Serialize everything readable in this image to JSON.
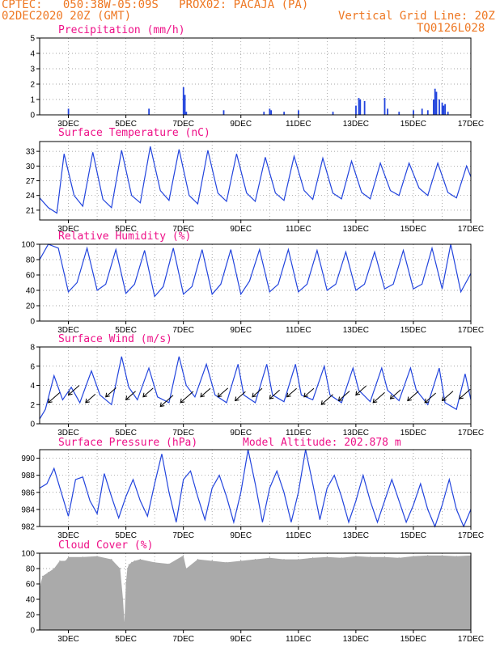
{
  "header": {
    "line1": "CPTEC:   050:38W-05:09S   PROX02: PACAJA (PA)",
    "line2": "02DEC2020 20Z (GMT)",
    "grid_note": "Vertical Grid Line: 20Z",
    "code": "TQ0126L028"
  },
  "colors": {
    "header": "#ee7722",
    "title": "#ee1188",
    "line": "#2244dd",
    "bar": "#2244dd",
    "cloud": "#aaaaaa",
    "wind": "#000000"
  },
  "chart_data": [
    {
      "id": "precip",
      "type": "bar",
      "title": "Precipitation (mm/h)",
      "ylim": [
        0,
        5
      ],
      "yticks": [
        0,
        1,
        2,
        3,
        4,
        5
      ],
      "xlim": [
        2.0,
        17.0
      ],
      "xticks": [
        "3DEC",
        "5DEC",
        "7DEC",
        "9DEC",
        "11DEC",
        "13DEC",
        "15DEC",
        "17DEC"
      ],
      "x": [
        3.0,
        5.8,
        7.0,
        7.05,
        7.1,
        8.4,
        9.8,
        10.0,
        10.05,
        10.5,
        11.0,
        12.2,
        13.0,
        13.1,
        13.15,
        13.3,
        14.0,
        14.1,
        14.5,
        15.0,
        15.3,
        15.5,
        15.7,
        15.75,
        15.8,
        15.9,
        16.0,
        16.05,
        16.1,
        16.2
      ],
      "values": [
        0.4,
        0.4,
        1.8,
        1.3,
        0.2,
        0.3,
        0.2,
        0.4,
        0.3,
        0.2,
        0.3,
        0.2,
        0.6,
        1.1,
        1.0,
        0.9,
        1.1,
        0.4,
        0.2,
        0.3,
        0.4,
        0.3,
        1.0,
        1.7,
        1.5,
        1.0,
        0.8,
        0.6,
        0.7,
        0.2
      ]
    },
    {
      "id": "temp",
      "type": "line",
      "title": "Surface Temperature (nC)",
      "ylim": [
        19,
        35
      ],
      "yticks": [
        21,
        24,
        27,
        30,
        33
      ],
      "xlim": [
        2.0,
        17.0
      ],
      "xticks": [
        "3DEC",
        "5DEC",
        "7DEC",
        "9DEC",
        "11DEC",
        "13DEC",
        "15DEC",
        "17DEC"
      ],
      "x": [
        2.0,
        2.3,
        2.6,
        2.85,
        3.2,
        3.5,
        3.85,
        4.2,
        4.5,
        4.85,
        5.2,
        5.5,
        5.85,
        6.2,
        6.5,
        6.85,
        7.2,
        7.5,
        7.85,
        8.2,
        8.5,
        8.85,
        9.2,
        9.5,
        9.85,
        10.2,
        10.5,
        10.85,
        11.2,
        11.5,
        11.85,
        12.2,
        12.5,
        12.85,
        13.2,
        13.5,
        13.85,
        14.2,
        14.5,
        14.85,
        15.2,
        15.5,
        15.85,
        16.2,
        16.5,
        16.85,
        17.0
      ],
      "values": [
        23.5,
        21.5,
        20.4,
        32.5,
        24,
        21.8,
        32.8,
        23.2,
        21.5,
        33.2,
        24,
        22.5,
        34,
        25,
        23,
        33.4,
        24,
        22.3,
        33.2,
        24.5,
        22.8,
        32.5,
        24.5,
        22.8,
        31.8,
        24.5,
        23,
        32,
        25,
        23.2,
        31.6,
        24.5,
        23.3,
        31,
        24.6,
        23.3,
        30.6,
        25,
        24,
        30.6,
        25.5,
        24,
        30.6,
        24.6,
        23.5,
        30,
        27.8
      ]
    },
    {
      "id": "rh",
      "type": "line",
      "title": "Relative Humidity (%)",
      "ylim": [
        0,
        100
      ],
      "yticks": [
        0,
        20,
        40,
        60,
        80,
        100
      ],
      "xlim": [
        2.0,
        17.0
      ],
      "xticks": [
        "3DEC",
        "5DEC",
        "7DEC",
        "9DEC",
        "11DEC",
        "13DEC",
        "15DEC",
        "17DEC"
      ],
      "x": [
        2.0,
        2.3,
        2.65,
        3.0,
        3.3,
        3.65,
        4.0,
        4.3,
        4.65,
        5.0,
        5.3,
        5.65,
        6.0,
        6.3,
        6.65,
        7.0,
        7.3,
        7.65,
        8.0,
        8.3,
        8.65,
        9.0,
        9.3,
        9.65,
        10.0,
        10.3,
        10.65,
        11.0,
        11.3,
        11.65,
        12.0,
        12.3,
        12.65,
        13.0,
        13.3,
        13.65,
        14.0,
        14.3,
        14.65,
        15.0,
        15.3,
        15.65,
        16.0,
        16.3,
        16.65,
        17.0
      ],
      "values": [
        80,
        100,
        95,
        38,
        50,
        95,
        40,
        48,
        93,
        36,
        48,
        92,
        32,
        45,
        95,
        35,
        45,
        93,
        35,
        48,
        93,
        35,
        52,
        93,
        38,
        48,
        93,
        38,
        48,
        92,
        40,
        48,
        90,
        40,
        48,
        90,
        42,
        48,
        92,
        42,
        48,
        95,
        42,
        100,
        38,
        62
      ]
    },
    {
      "id": "wind",
      "type": "line",
      "title": "Surface Wind (m/s)",
      "ylim": [
        0,
        8
      ],
      "yticks": [
        0,
        2,
        4,
        6,
        8
      ],
      "xlim": [
        2.0,
        17.0
      ],
      "xticks": [
        "3DEC",
        "5DEC",
        "7DEC",
        "9DEC",
        "11DEC",
        "13DEC",
        "15DEC",
        "17DEC"
      ],
      "x": [
        2.0,
        2.2,
        2.5,
        2.8,
        3.1,
        3.4,
        3.8,
        4.1,
        4.5,
        4.85,
        5.1,
        5.4,
        5.8,
        6.1,
        6.5,
        6.85,
        7.1,
        7.4,
        7.8,
        8.1,
        8.5,
        8.9,
        9.1,
        9.5,
        9.9,
        10.1,
        10.5,
        10.9,
        11.1,
        11.5,
        11.9,
        12.1,
        12.5,
        12.9,
        13.1,
        13.5,
        13.9,
        14.1,
        14.5,
        14.9,
        15.1,
        15.5,
        15.9,
        16.1,
        16.5,
        16.8,
        17.0
      ],
      "values": [
        0.5,
        1.5,
        5.0,
        2.5,
        3.8,
        2.2,
        5.5,
        3.0,
        2.0,
        7.0,
        3.8,
        2.5,
        5.8,
        2.8,
        2.2,
        7.0,
        4.0,
        2.8,
        6.2,
        3.0,
        2.2,
        6.2,
        3.0,
        2.2,
        6.2,
        3.0,
        2.3,
        6.2,
        3.0,
        2.5,
        6.0,
        3.0,
        2.2,
        5.8,
        3.5,
        2.3,
        5.8,
        3.5,
        2.4,
        5.8,
        3.5,
        2.0,
        5.8,
        2.2,
        1.5,
        5.2,
        2.5
      ],
      "arrows_x": [
        2.3,
        3.0,
        3.6,
        4.3,
        5.0,
        5.6,
        6.2,
        6.9,
        7.6,
        8.2,
        8.8,
        9.4,
        10.0,
        10.6,
        11.2,
        11.8,
        12.4,
        13.0,
        13.6,
        14.2,
        14.8,
        15.4,
        16.0,
        16.6
      ],
      "arrows_y": [
        2.2,
        3.0,
        2.2,
        2.8,
        2.5,
        2.8,
        1.8,
        2.2,
        2.8,
        2.8,
        2.4,
        2.8,
        2.6,
        2.8,
        2.8,
        2.0,
        2.4,
        3.0,
        2.2,
        2.6,
        2.4,
        2.2,
        2.4,
        2.6
      ],
      "arrows_speed": [
        1.8,
        1.6,
        1.2,
        1.4,
        1.2,
        1.3,
        2.2,
        2.2,
        1.2,
        1.3,
        1.4,
        1.2,
        1.3,
        1.2,
        1.2,
        1.8,
        1.6,
        1.4,
        1.8,
        1.4,
        1.6,
        1.6,
        1.6,
        1.6
      ]
    },
    {
      "id": "pres",
      "type": "line",
      "title": "Surface Pressure (hPa)",
      "subtitle": "Model Altitude: 202.878 m",
      "ylim": [
        982,
        991
      ],
      "yticks": [
        982,
        984,
        986,
        988,
        990
      ],
      "xlim": [
        2.0,
        17.0
      ],
      "xticks": [
        "3DEC",
        "5DEC",
        "7DEC",
        "9DEC",
        "11DEC",
        "13DEC",
        "15DEC",
        "17DEC"
      ],
      "x": [
        2.0,
        2.25,
        2.5,
        2.75,
        3.0,
        3.25,
        3.5,
        3.75,
        4.0,
        4.25,
        4.5,
        4.75,
        5.0,
        5.25,
        5.5,
        5.75,
        6.0,
        6.25,
        6.5,
        6.75,
        7.0,
        7.25,
        7.5,
        7.75,
        8.0,
        8.25,
        8.5,
        8.75,
        9.0,
        9.25,
        9.5,
        9.75,
        10.0,
        10.25,
        10.5,
        10.75,
        11.0,
        11.25,
        11.5,
        11.75,
        12.0,
        12.25,
        12.5,
        12.75,
        13.0,
        13.25,
        13.5,
        13.75,
        14.0,
        14.25,
        14.5,
        14.75,
        15.0,
        15.25,
        15.5,
        15.75,
        16.0,
        16.25,
        16.5,
        16.75,
        17.0
      ],
      "values": [
        986.5,
        987,
        988.8,
        986,
        983.2,
        987.5,
        987.8,
        985,
        983.5,
        988.2,
        985.5,
        983,
        985.5,
        987.5,
        985,
        983.2,
        987,
        990.5,
        986,
        982.5,
        987.5,
        988.5,
        985.5,
        982.8,
        986.5,
        988,
        985.5,
        982.5,
        986,
        991.2,
        987,
        982.5,
        986.5,
        988.5,
        986,
        982.5,
        986,
        991.2,
        987,
        982.8,
        986.5,
        988,
        985.5,
        982.5,
        985,
        988,
        985,
        982.5,
        985,
        987.5,
        985,
        982.5,
        984.5,
        987,
        984,
        982,
        984.5,
        987.5,
        984,
        982,
        984
      ]
    },
    {
      "id": "cloud",
      "type": "bar",
      "title": "Cloud Cover (%)",
      "ylim": [
        0,
        100
      ],
      "yticks": [
        0,
        20,
        40,
        60,
        80,
        100
      ],
      "xlim": [
        2.0,
        17.0
      ],
      "xticks": [
        "3DEC",
        "5DEC",
        "7DEC",
        "9DEC",
        "11DEC",
        "13DEC",
        "15DEC",
        "17DEC"
      ],
      "x": [
        2.0,
        2.1,
        2.3,
        2.5,
        2.7,
        2.9,
        3.0,
        3.5,
        4.0,
        4.5,
        4.8,
        4.9,
        4.95,
        5.0,
        5.05,
        5.1,
        5.2,
        5.3,
        5.5,
        6.0,
        6.5,
        7.0,
        7.1,
        7.5,
        8.0,
        8.5,
        9.0,
        9.5,
        10.0,
        10.5,
        11.0,
        11.5,
        12.0,
        12.5,
        13.0,
        13.5,
        14.0,
        14.5,
        15.0,
        15.5,
        16.0,
        16.5,
        17.0
      ],
      "values": [
        55,
        70,
        75,
        80,
        90,
        90,
        95,
        95,
        96,
        92,
        80,
        40,
        10,
        60,
        80,
        85,
        88,
        90,
        92,
        88,
        86,
        97,
        80,
        92,
        90,
        88,
        90,
        92,
        94,
        92,
        92,
        94,
        95,
        94,
        96,
        95,
        95,
        94,
        96,
        97,
        97,
        96,
        97
      ]
    }
  ]
}
